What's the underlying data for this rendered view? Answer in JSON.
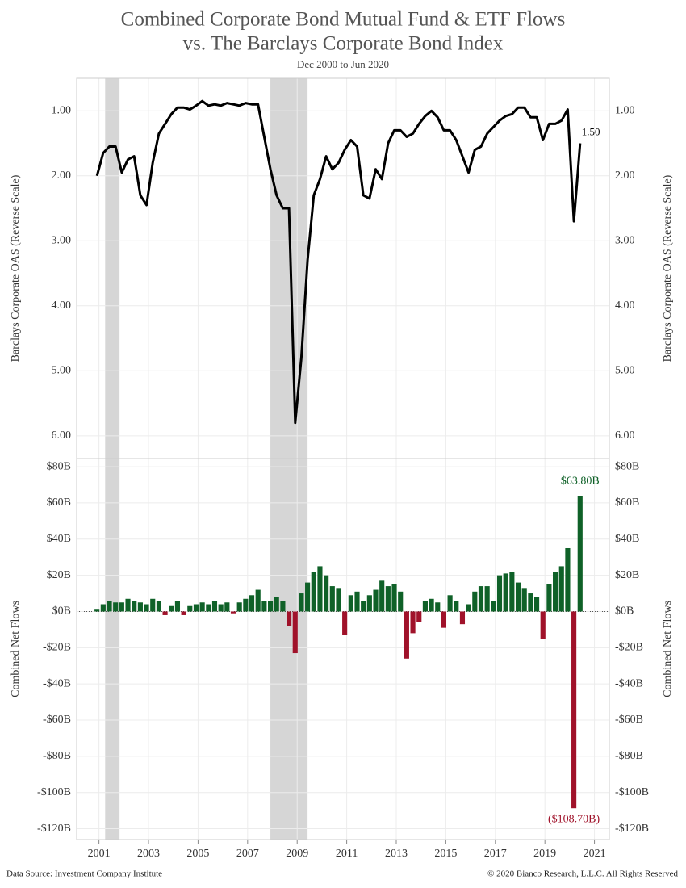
{
  "chart_data": {
    "title": [
      "Combined Corporate Bond Mutual Fund & ETF Flows",
      "vs. The Barclays Corporate Bond Index"
    ],
    "subtitle": "Dec 2000 to Jun 2020",
    "source": "Data Source: Investment Company Institute",
    "copyright": "© 2020 Bianco Research, L.L.C. All Rights Reserved",
    "x": [
      2000.92,
      2001.17,
      2001.42,
      2001.67,
      2001.92,
      2002.17,
      2002.42,
      2002.67,
      2002.92,
      2003.17,
      2003.42,
      2003.67,
      2003.92,
      2004.17,
      2004.42,
      2004.67,
      2004.92,
      2005.17,
      2005.42,
      2005.67,
      2005.92,
      2006.17,
      2006.42,
      2006.67,
      2006.92,
      2007.17,
      2007.42,
      2007.67,
      2007.92,
      2008.17,
      2008.42,
      2008.67,
      2008.92,
      2009.17,
      2009.42,
      2009.67,
      2009.92,
      2010.17,
      2010.42,
      2010.67,
      2010.92,
      2011.17,
      2011.42,
      2011.67,
      2011.92,
      2012.17,
      2012.42,
      2012.67,
      2012.92,
      2013.17,
      2013.42,
      2013.67,
      2013.92,
      2014.17,
      2014.42,
      2014.67,
      2014.92,
      2015.17,
      2015.42,
      2015.67,
      2015.92,
      2016.17,
      2016.42,
      2016.67,
      2016.92,
      2017.17,
      2017.42,
      2017.67,
      2017.92,
      2018.17,
      2018.42,
      2018.67,
      2018.92,
      2019.17,
      2019.42,
      2019.67,
      2019.92,
      2020.17,
      2020.42
    ],
    "xlim": [
      2000.1,
      2021.6
    ],
    "xticks": [
      2001,
      2003,
      2005,
      2007,
      2009,
      2011,
      2013,
      2015,
      2017,
      2019,
      2021
    ],
    "recessions": [
      [
        2001.25,
        2001.83
      ],
      [
        2007.92,
        2009.42
      ]
    ],
    "recession_color": "#d6d6d6",
    "grid": true,
    "panels": [
      {
        "type": "line",
        "ylabel": "Barclays Corporate OAS (Reverse Scale)",
        "color": "#000000",
        "reverse_y": true,
        "ylim": [
          0.5,
          6.35
        ],
        "yticks": [
          {
            "value": 1,
            "label": "1.00"
          },
          {
            "value": 2,
            "label": "2.00"
          },
          {
            "value": 3,
            "label": "3.00"
          },
          {
            "value": 4,
            "label": "4.00"
          },
          {
            "value": 5,
            "label": "5.00"
          },
          {
            "value": 6,
            "label": "6.00"
          }
        ],
        "values": [
          2.0,
          1.65,
          1.55,
          1.55,
          1.95,
          1.75,
          1.7,
          2.3,
          2.45,
          1.8,
          1.35,
          1.2,
          1.05,
          0.95,
          0.95,
          0.98,
          0.92,
          0.85,
          0.92,
          0.9,
          0.92,
          0.88,
          0.9,
          0.92,
          0.88,
          0.9,
          0.9,
          1.4,
          1.9,
          2.3,
          2.5,
          2.5,
          5.8,
          4.8,
          3.3,
          2.3,
          2.05,
          1.7,
          1.9,
          1.8,
          1.6,
          1.45,
          1.55,
          2.3,
          2.35,
          1.9,
          2.05,
          1.5,
          1.3,
          1.3,
          1.4,
          1.35,
          1.2,
          1.08,
          1.0,
          1.1,
          1.3,
          1.3,
          1.45,
          1.7,
          1.95,
          1.6,
          1.55,
          1.35,
          1.25,
          1.15,
          1.08,
          1.05,
          0.95,
          0.95,
          1.1,
          1.1,
          1.45,
          1.2,
          1.2,
          1.15,
          0.98,
          2.7,
          1.5
        ],
        "end_label": "1.50"
      },
      {
        "type": "bar",
        "ylabel": "Combined Net Flows",
        "positive_color": "#0f6128",
        "negative_color": "#a0122a",
        "ylim": [
          -126,
          84.5
        ],
        "yticks": [
          {
            "value": 80,
            "label": "$80B"
          },
          {
            "value": 60,
            "label": "$60B"
          },
          {
            "value": 40,
            "label": "$40B"
          },
          {
            "value": 20,
            "label": "$20B"
          },
          {
            "value": 0,
            "label": "$0B"
          },
          {
            "value": -20,
            "label": "-$20B"
          },
          {
            "value": -40,
            "label": "-$40B"
          },
          {
            "value": -60,
            "label": "-$60B"
          },
          {
            "value": -80,
            "label": "-$80B"
          },
          {
            "value": -100,
            "label": "-$100B"
          },
          {
            "value": -120,
            "label": "-$120B"
          }
        ],
        "values": [
          1,
          4,
          6,
          5,
          5,
          7,
          6,
          5,
          4,
          7,
          6,
          -2,
          3,
          6,
          -2,
          3,
          4,
          5,
          4,
          6,
          4,
          5,
          -1,
          5,
          7,
          9,
          12,
          6,
          6,
          8,
          6,
          -8,
          -23,
          10,
          16,
          22,
          25,
          20,
          14,
          13,
          -13,
          9,
          11,
          6,
          9,
          12,
          17,
          14,
          15,
          11,
          -26,
          -12,
          -6,
          6,
          7,
          5,
          -9,
          9,
          6,
          -7,
          4,
          11,
          14,
          14,
          6,
          20,
          21,
          22,
          16,
          13,
          10,
          8,
          -15,
          15,
          22,
          25,
          35,
          -108.7,
          63.8
        ],
        "max_label": "$63.80B",
        "min_label": "($108.70B)"
      }
    ]
  }
}
